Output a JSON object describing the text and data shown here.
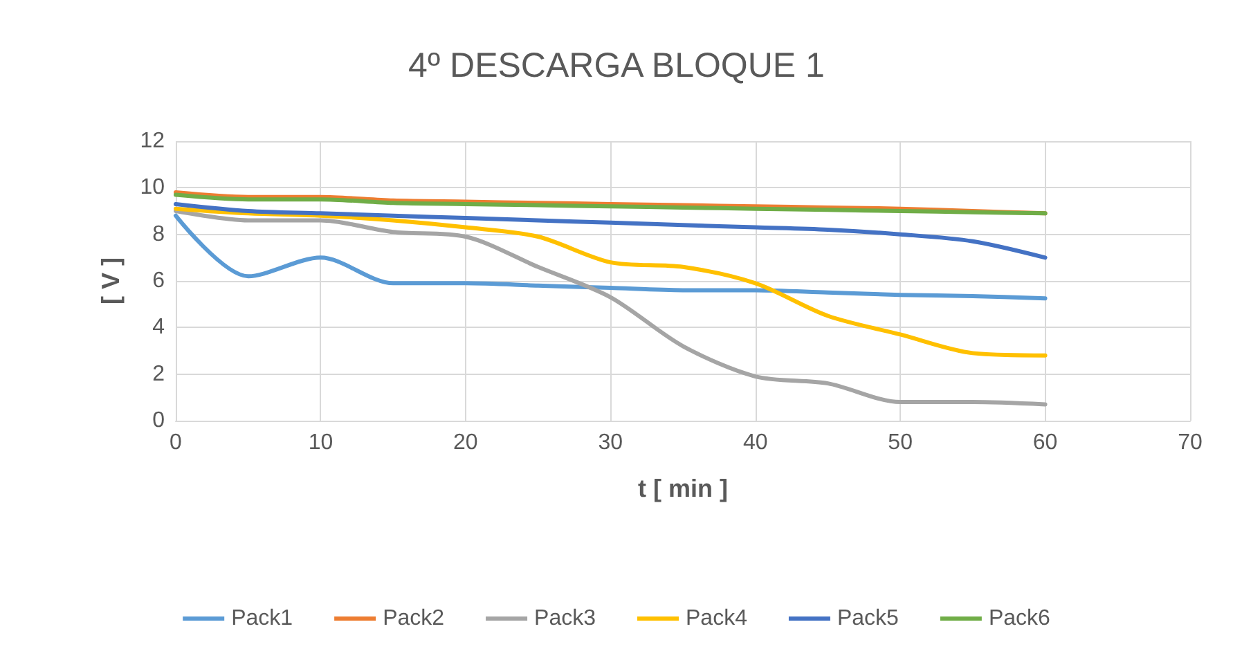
{
  "chart_data": {
    "type": "line",
    "title": "4º DESCARGA BLOQUE 1",
    "xlabel": "t [ min ]",
    "ylabel": "[ V ]",
    "x": [
      0,
      5,
      10,
      15,
      20,
      25,
      30,
      35,
      40,
      45,
      50,
      55,
      60
    ],
    "series": [
      {
        "name": "Pack1",
        "color": "#5b9bd5",
        "values": [
          8.8,
          6.2,
          7.0,
          5.9,
          5.9,
          5.8,
          5.7,
          5.6,
          5.6,
          5.5,
          5.4,
          5.35,
          5.25
        ]
      },
      {
        "name": "Pack2",
        "color": "#ed7d31",
        "values": [
          9.8,
          9.6,
          9.6,
          9.45,
          9.4,
          9.35,
          9.3,
          9.25,
          9.2,
          9.15,
          9.1,
          9.0,
          8.9
        ]
      },
      {
        "name": "Pack3",
        "color": "#a5a5a5",
        "values": [
          9.0,
          8.6,
          8.6,
          8.1,
          7.9,
          6.6,
          5.3,
          3.2,
          1.9,
          1.6,
          0.8,
          0.8,
          0.7
        ]
      },
      {
        "name": "Pack4",
        "color": "#ffc000",
        "values": [
          9.1,
          8.9,
          8.8,
          8.6,
          8.3,
          7.9,
          6.8,
          6.6,
          5.9,
          4.5,
          3.7,
          2.9,
          2.8
        ]
      },
      {
        "name": "Pack5",
        "color": "#4472c4",
        "values": [
          9.3,
          9.0,
          8.9,
          8.8,
          8.7,
          8.6,
          8.5,
          8.4,
          8.3,
          8.2,
          8.0,
          7.7,
          7.0
        ]
      },
      {
        "name": "Pack6",
        "color": "#70ad47",
        "values": [
          9.7,
          9.5,
          9.5,
          9.35,
          9.3,
          9.25,
          9.2,
          9.15,
          9.1,
          9.05,
          9.0,
          8.95,
          8.9
        ]
      }
    ],
    "xlim": [
      0,
      70
    ],
    "xticks": [
      0,
      10,
      20,
      30,
      40,
      50,
      60,
      70
    ],
    "ylim": [
      0,
      12
    ],
    "yticks": [
      0,
      2,
      4,
      6,
      8,
      10,
      12
    ],
    "grid": true,
    "legend": "bottom",
    "marker": "none",
    "line_style": "solid"
  }
}
